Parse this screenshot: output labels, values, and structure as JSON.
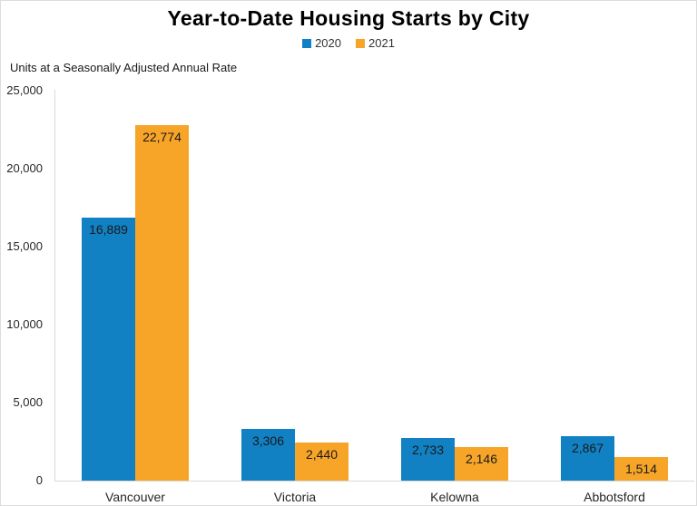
{
  "title": "Year-to-Date Housing Starts by City",
  "subtitle": "Units at a Seasonally Adjusted Annual Rate",
  "legend": {
    "items": [
      {
        "label": "2020",
        "color": "#1181C4"
      },
      {
        "label": "2021",
        "color": "#F7A528"
      }
    ]
  },
  "chart_data": {
    "type": "bar",
    "title": "Year-to-Date Housing Starts by City",
    "subtitle": "Units at a Seasonally Adjusted Annual Rate",
    "categories": [
      "Vancouver",
      "Victoria",
      "Kelowna",
      "Abbotsford"
    ],
    "series": [
      {
        "name": "2020",
        "color": "#1181C4",
        "values": [
          16889,
          3306,
          2733,
          2867
        ],
        "labels": [
          "16,889",
          "3,306",
          "2,733",
          "2,867"
        ]
      },
      {
        "name": "2021",
        "color": "#F7A528",
        "values": [
          22774,
          2440,
          2146,
          1514
        ],
        "labels": [
          "22,774",
          "2,440",
          "2,146",
          "1,514"
        ]
      }
    ],
    "ylim": [
      0,
      25000
    ],
    "yticks": [
      {
        "value": 0,
        "label": "0"
      },
      {
        "value": 5000,
        "label": "5,000"
      },
      {
        "value": 10000,
        "label": "10,000"
      },
      {
        "value": 15000,
        "label": "15,000"
      },
      {
        "value": 20000,
        "label": "20,000"
      },
      {
        "value": 25000,
        "label": "25,000"
      }
    ],
    "grid": false,
    "legend_position": "top",
    "bar_label_placement": "inside-top",
    "colors": {
      "bar_label_text": "#1A1A1A",
      "axis_line": "#D9D9D9",
      "title_text": "#000000"
    }
  }
}
